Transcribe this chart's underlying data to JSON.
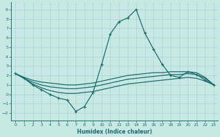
{
  "xlabel": "Humidex (Indice chaleur)",
  "xlim": [
    -0.5,
    23.5
  ],
  "ylim": [
    -2.8,
    9.8
  ],
  "xticks": [
    0,
    1,
    2,
    3,
    4,
    5,
    6,
    7,
    8,
    9,
    10,
    11,
    12,
    13,
    14,
    15,
    16,
    17,
    18,
    19,
    20,
    21,
    22,
    23
  ],
  "yticks": [
    -2,
    -1,
    0,
    1,
    2,
    3,
    4,
    5,
    6,
    7,
    8,
    9
  ],
  "bg_color": "#c8e8e4",
  "grid_color": "#a8d4d0",
  "line_color": "#1a6b6b",
  "line1_x": [
    0,
    1,
    2,
    3,
    4,
    5,
    6,
    7,
    8,
    9,
    10,
    11,
    12,
    13,
    14,
    15,
    16,
    17,
    18,
    19,
    20,
    21,
    22,
    23
  ],
  "line1_y": [
    2.2,
    1.7,
    1.0,
    0.5,
    0.0,
    -0.4,
    -0.6,
    -1.8,
    -1.3,
    0.2,
    3.2,
    6.4,
    7.7,
    8.1,
    9.0,
    6.5,
    4.8,
    3.2,
    2.0,
    1.8,
    2.4,
    2.1,
    1.5,
    1.0
  ],
  "line2_x": [
    0,
    1,
    2,
    3,
    4,
    5,
    6,
    7,
    8,
    9,
    10,
    11,
    12,
    13,
    14,
    15,
    16,
    17,
    18,
    19,
    20,
    21,
    22,
    23
  ],
  "line2_y": [
    2.2,
    1.8,
    1.5,
    1.3,
    1.2,
    1.1,
    1.0,
    1.0,
    1.1,
    1.2,
    1.4,
    1.6,
    1.8,
    2.0,
    2.1,
    2.2,
    2.3,
    2.3,
    2.4,
    2.4,
    2.4,
    2.3,
    1.8,
    1.0
  ],
  "line3_x": [
    0,
    1,
    2,
    3,
    4,
    5,
    6,
    7,
    8,
    9,
    10,
    11,
    12,
    13,
    14,
    15,
    16,
    17,
    18,
    19,
    20,
    21,
    22,
    23
  ],
  "line3_y": [
    2.2,
    1.7,
    1.3,
    1.0,
    0.8,
    0.7,
    0.6,
    0.6,
    0.7,
    0.8,
    1.0,
    1.2,
    1.4,
    1.6,
    1.7,
    1.8,
    1.9,
    2.0,
    2.1,
    2.1,
    2.2,
    2.1,
    1.7,
    1.0
  ],
  "line4_x": [
    0,
    1,
    2,
    3,
    4,
    5,
    6,
    7,
    8,
    9,
    10,
    11,
    12,
    13,
    14,
    15,
    16,
    17,
    18,
    19,
    20,
    21,
    22,
    23
  ],
  "line4_y": [
    2.2,
    1.7,
    1.1,
    0.7,
    0.4,
    0.2,
    0.1,
    0.1,
    0.2,
    0.3,
    0.5,
    0.7,
    0.9,
    1.1,
    1.2,
    1.3,
    1.4,
    1.5,
    1.6,
    1.7,
    1.8,
    1.7,
    1.4,
    1.0
  ]
}
